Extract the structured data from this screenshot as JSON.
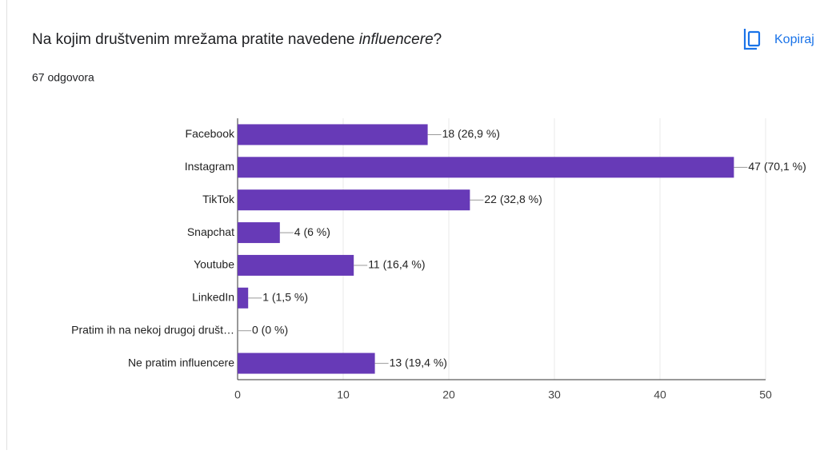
{
  "chart_data": {
    "type": "bar",
    "orientation": "horizontal",
    "title": [
      "Na kojim društvenim mrežama pratite navedene ",
      "influencere",
      "?"
    ],
    "subtitle": "67 odgovora",
    "action": "Kopiraj",
    "categories": [
      "Facebook",
      "Instagram",
      "TikTok",
      "Snapchat",
      "Youtube",
      "LinkedIn",
      "Pratim ih na nekoj drugoj društ…",
      "Ne pratim influencere"
    ],
    "values": [
      18,
      47,
      22,
      4,
      11,
      1,
      0,
      13
    ],
    "value_labels": [
      "18 (26,9 %)",
      "47 (70,1 %)",
      "22 (32,8 %)",
      "4 (6 %)",
      "11 (16,4 %)",
      "1 (1,5 %)",
      "0 (0 %)",
      "13 (19,4 %)"
    ],
    "color": "#673ab7",
    "xlim": [
      0,
      50
    ],
    "xticks": [
      0,
      10,
      20,
      30,
      40,
      50
    ],
    "grid": true
  }
}
